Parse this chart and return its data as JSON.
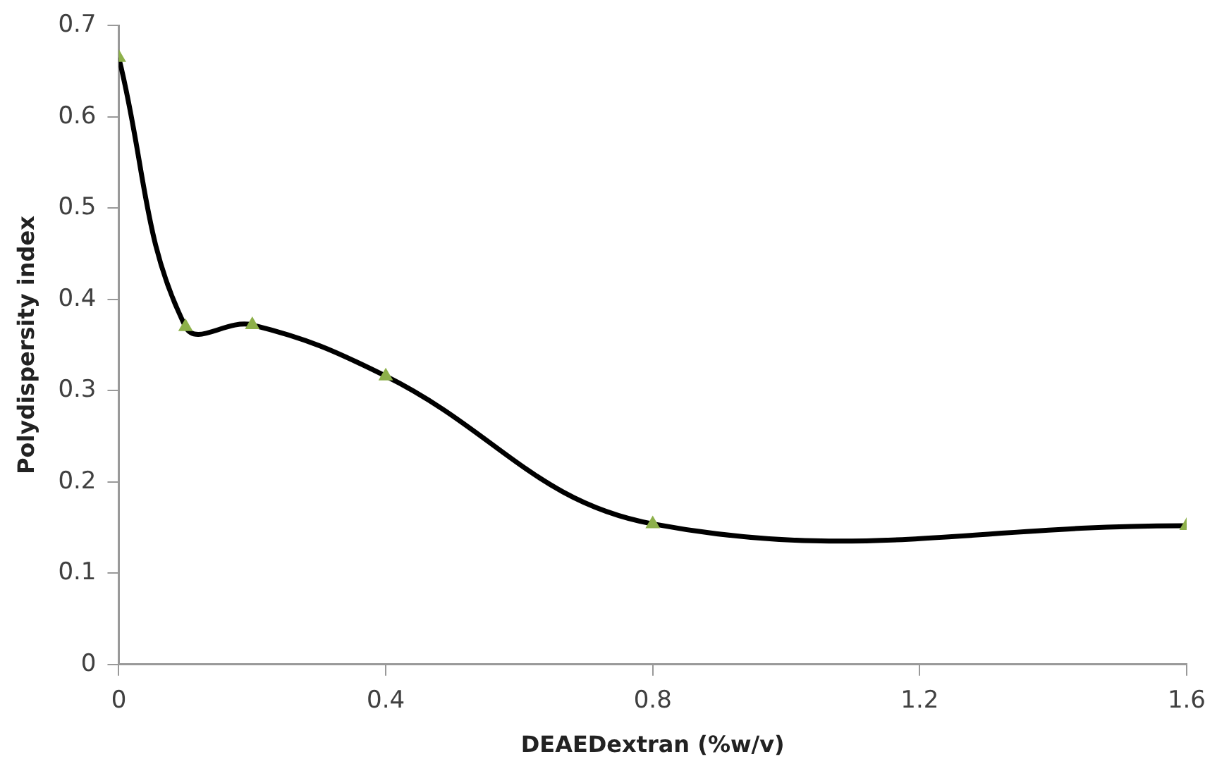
{
  "chart_data": {
    "type": "line",
    "xlabel": "DEAEDextran (%w/v)",
    "ylabel": "Polydispersity index",
    "x": [
      0,
      0.1,
      0.2,
      0.4,
      0.8,
      1.6
    ],
    "series": [
      {
        "color": "#000000",
        "values": [
          0.665,
          0.37,
          0.372,
          0.316,
          0.154,
          0.152
        ]
      }
    ],
    "xlim": [
      0,
      1.6
    ],
    "xticks": [
      0,
      0.4,
      0.8,
      1.2,
      1.6
    ],
    "ylim": [
      0,
      0.7
    ],
    "yticks": [
      0,
      0.1,
      0.2,
      0.3,
      0.4,
      0.5,
      0.6,
      0.7
    ],
    "grid": false,
    "legend": false,
    "marker": "triangle",
    "line_style": "solid"
  }
}
